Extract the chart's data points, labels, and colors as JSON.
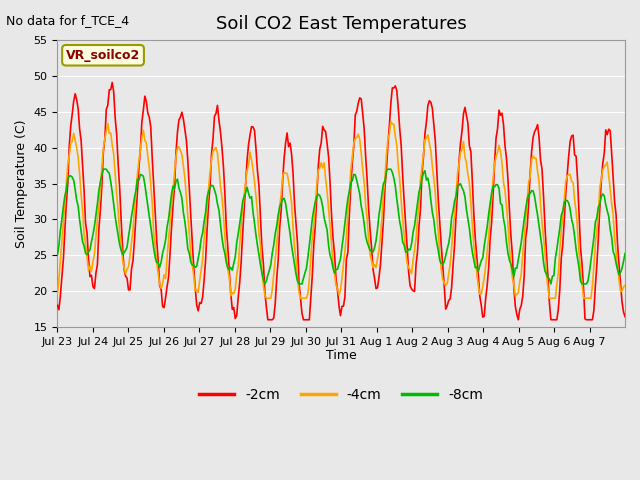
{
  "title": "Soil CO2 East Temperatures",
  "ylabel": "Soil Temperature (C)",
  "xlabel": "Time",
  "annotation": "No data for f_TCE_4",
  "box_label": "VR_soilco2",
  "ylim": [
    15,
    55
  ],
  "yticks": [
    15,
    20,
    25,
    30,
    35,
    40,
    45,
    50,
    55
  ],
  "legend": [
    "-2cm",
    "-4cm",
    "-8cm"
  ],
  "legend_colors": [
    "#ff0000",
    "#ffa500",
    "#00bb00"
  ],
  "x_tick_labels": [
    "Jul 23",
    "Jul 24",
    "Jul 25",
    "Jul 26",
    "Jul 27",
    "Jul 28",
    "Jul 29",
    "Jul 30",
    "Jul 31",
    "Aug 1",
    "Aug 2",
    "Aug 3",
    "Aug 4",
    "Aug 5",
    "Aug 6",
    "Aug 7"
  ],
  "fig_facecolor": "#e8e8e8",
  "plot_bg_color": "#e8e8e8",
  "days": 16,
  "pts_per_day": 24
}
